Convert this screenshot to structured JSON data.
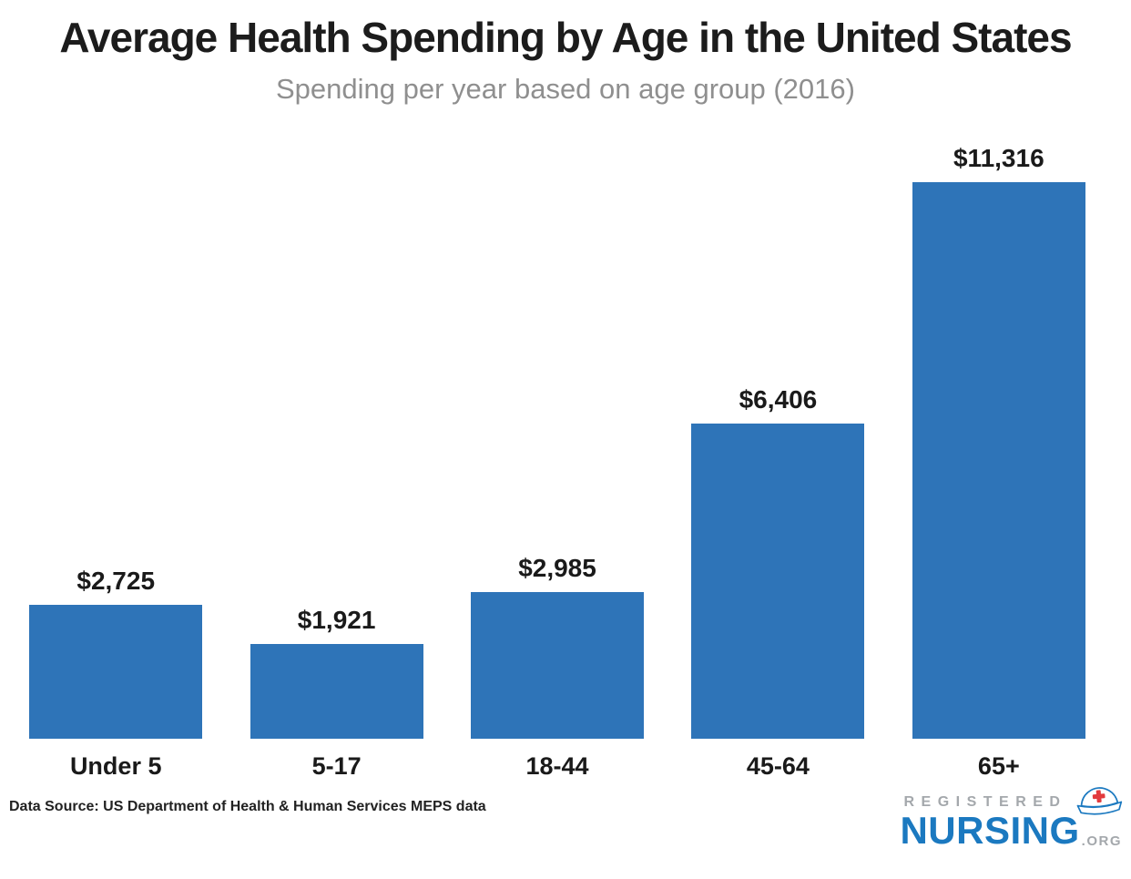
{
  "page": {
    "title": "Average Health Spending by Age in the United States",
    "subtitle": "Spending per year based on age group (2016)",
    "data_source": "Data Source: US Department of Health & Human Services MEPS data"
  },
  "chart_data": {
    "type": "bar",
    "title": "Average Health Spending by Age in the United States",
    "subtitle": "Spending per year based on age group (2016)",
    "categories": [
      "Under 5",
      "5-17",
      "18-44",
      "45-64",
      "65+"
    ],
    "values": [
      2725,
      1921,
      2985,
      6406,
      11316
    ],
    "value_labels": [
      "$2,725",
      "$1,921",
      "$2,985",
      "$6,406",
      "$11,316"
    ],
    "xlabel": "",
    "ylabel": "",
    "ylim": [
      0,
      11316
    ],
    "grid": false,
    "legend": false,
    "bar_color": "#2e74b8",
    "orientation": "vertical"
  },
  "logo": {
    "registered": "REGISTERED",
    "nursing": "NURSING",
    "org": ".ORG",
    "blue": "#1b79c0",
    "gray": "#a4a8ac",
    "cross_red": "#e23b3e",
    "icon": "nurse-cap-icon"
  }
}
